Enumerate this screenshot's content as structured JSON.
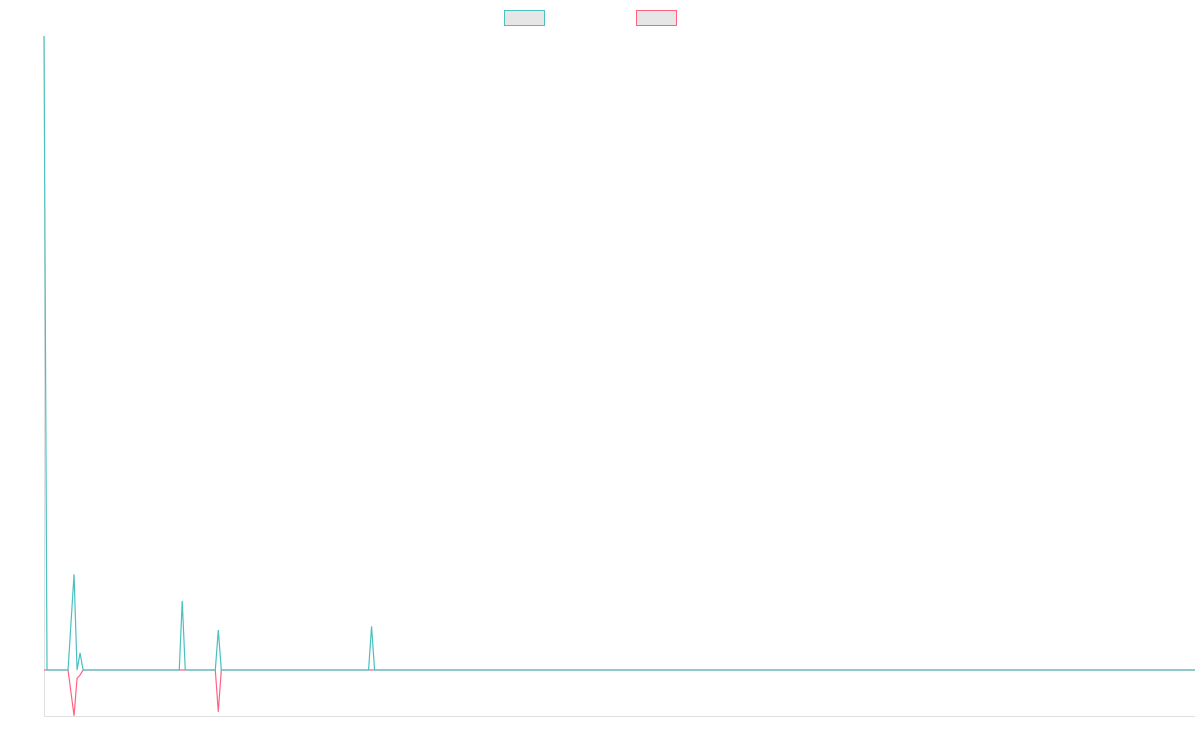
{
  "chart_data": {
    "type": "line",
    "x": [
      0,
      1,
      8,
      10,
      11,
      12,
      13,
      45,
      46,
      47,
      57,
      58,
      59,
      108,
      109,
      110,
      383
    ],
    "series": [
      {
        "color": "#4bc0c0",
        "values": [
          100,
          0,
          0,
          15.1,
          0,
          2.7,
          0,
          0,
          10.9,
          0,
          0,
          6.3,
          0,
          0,
          6.9,
          0,
          0
        ]
      },
      {
        "color": "#ff6384",
        "values": [
          0,
          0,
          0,
          -7.2,
          -1.3,
          -0.8,
          0,
          0,
          0,
          0,
          0,
          -6.6,
          0,
          0,
          0,
          0,
          0
        ]
      }
    ],
    "xlim": [
      0,
      383
    ],
    "ylim": [
      -7.25,
      100
    ],
    "legend": "top"
  }
}
